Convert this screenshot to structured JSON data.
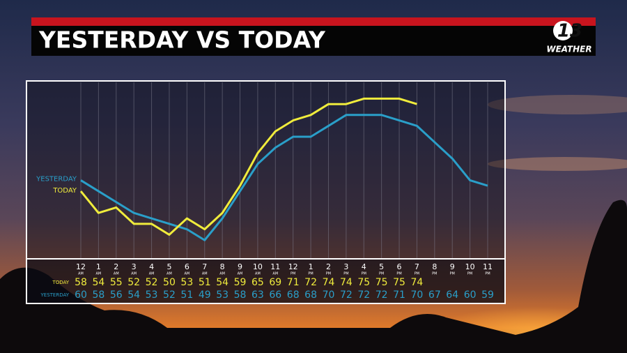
{
  "chart_data": {
    "type": "line",
    "title": "YESTERDAY VS TODAY",
    "logo": {
      "number": "13",
      "text": "WEATHER"
    },
    "categories": [
      "12",
      "1",
      "2",
      "3",
      "4",
      "5",
      "6",
      "7",
      "8",
      "9",
      "10",
      "11",
      "12",
      "1",
      "2",
      "3",
      "4",
      "5",
      "6",
      "7",
      "8",
      "9",
      "10",
      "11"
    ],
    "category_sublabels": [
      "AM",
      "AM",
      "AM",
      "AM",
      "AM",
      "AM",
      "AM",
      "AM",
      "AM",
      "AM",
      "AM",
      "AM",
      "PM",
      "PM",
      "PM",
      "PM",
      "PM",
      "PM",
      "PM",
      "PM",
      "PM",
      "PM",
      "PM",
      "PM"
    ],
    "series": [
      {
        "name": "YESTERDAY",
        "color": "#2a9fc9",
        "values": [
          60,
          58,
          56,
          54,
          53,
          52,
          51,
          49,
          53,
          58,
          63,
          66,
          68,
          68,
          70,
          72,
          72,
          72,
          71,
          70,
          67,
          64,
          60,
          59
        ]
      },
      {
        "name": "TODAY",
        "color": "#f0ec3c",
        "values": [
          58,
          54,
          55,
          52,
          52,
          50,
          53,
          51,
          54,
          59,
          65,
          69,
          71,
          72,
          74,
          74,
          75,
          75,
          75,
          74,
          null,
          null,
          null,
          null
        ]
      }
    ],
    "ylim": [
      45.7,
      78
    ],
    "grid": true
  }
}
